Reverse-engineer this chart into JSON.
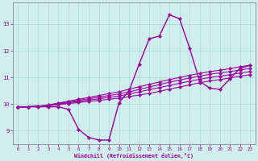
{
  "xlabel": "Windchill (Refroidissement éolien,°C)",
  "bg_color": "#d0eeee",
  "grid_color": "#b0dddd",
  "line_color": "#990099",
  "xlim": [
    -0.5,
    23.5
  ],
  "ylim": [
    8.5,
    13.8
  ],
  "xticks": [
    0,
    1,
    2,
    3,
    4,
    5,
    6,
    7,
    8,
    9,
    10,
    11,
    12,
    13,
    14,
    15,
    16,
    17,
    18,
    19,
    20,
    21,
    22,
    23
  ],
  "yticks": [
    9,
    10,
    11,
    12,
    13
  ],
  "main_curve": [
    9.9,
    9.9,
    9.9,
    9.9,
    9.9,
    9.8,
    9.05,
    8.75,
    8.65,
    8.65,
    10.05,
    10.5,
    11.5,
    12.45,
    12.55,
    13.35,
    13.2,
    12.1,
    10.85,
    10.6,
    10.55,
    10.95,
    11.35,
    11.45
  ],
  "linear_curves": [
    [
      9.88,
      9.9,
      9.92,
      9.94,
      9.98,
      10.02,
      10.06,
      10.1,
      10.14,
      10.18,
      10.22,
      10.28,
      10.34,
      10.4,
      10.48,
      10.56,
      10.64,
      10.72,
      10.8,
      10.87,
      10.92,
      10.98,
      11.05,
      11.1
    ],
    [
      9.88,
      9.9,
      9.92,
      9.95,
      10.0,
      10.05,
      10.1,
      10.15,
      10.2,
      10.25,
      10.3,
      10.38,
      10.46,
      10.54,
      10.62,
      10.7,
      10.78,
      10.86,
      10.93,
      11.0,
      11.05,
      11.1,
      11.17,
      11.22
    ],
    [
      9.88,
      9.9,
      9.92,
      9.96,
      10.02,
      10.08,
      10.14,
      10.2,
      10.26,
      10.32,
      10.38,
      10.46,
      10.55,
      10.64,
      10.73,
      10.82,
      10.9,
      10.98,
      11.05,
      11.12,
      11.17,
      11.22,
      11.28,
      11.34
    ],
    [
      9.88,
      9.9,
      9.92,
      9.97,
      10.04,
      10.11,
      10.18,
      10.25,
      10.32,
      10.39,
      10.46,
      10.56,
      10.65,
      10.74,
      10.83,
      10.92,
      11.0,
      11.08,
      11.15,
      11.22,
      11.27,
      11.33,
      11.4,
      11.46
    ]
  ],
  "marker": "D",
  "markersize": 2.2,
  "linewidth_main": 1.0,
  "linewidth_linear": 0.8
}
